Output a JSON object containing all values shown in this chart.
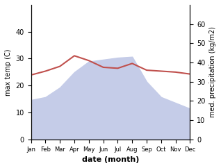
{
  "months": [
    "Jan",
    "Feb",
    "Mar",
    "Apr",
    "May",
    "Jun",
    "Jul",
    "Aug",
    "Sep",
    "Oct",
    "Nov",
    "Dec"
  ],
  "x": [
    0,
    1,
    2,
    3,
    4,
    5,
    6,
    7,
    8,
    9,
    10,
    11
  ],
  "temp": [
    33.5,
    35.5,
    38.0,
    43.5,
    41.0,
    37.5,
    37.0,
    39.5,
    36.0,
    35.5,
    35.0,
    34.0
  ],
  "precip": [
    20.5,
    22.0,
    27.0,
    35.0,
    40.5,
    41.5,
    42.5,
    43.0,
    30.0,
    22.0,
    19.0,
    16.0
  ],
  "temp_color": "#c0504d",
  "precip_fill_color": "#c5cce8",
  "temp_ylim": [
    0,
    50
  ],
  "precip_ylim": [
    0,
    70
  ],
  "temp_yticks": [
    0,
    10,
    20,
    30,
    40
  ],
  "precip_yticks": [
    0,
    10,
    20,
    30,
    40,
    50,
    60
  ],
  "ylabel_left": "max temp (C)",
  "ylabel_right": "med. precipitation (kg/m2)",
  "xlabel": "date (month)",
  "figsize": [
    3.18,
    2.42
  ],
  "dpi": 100
}
